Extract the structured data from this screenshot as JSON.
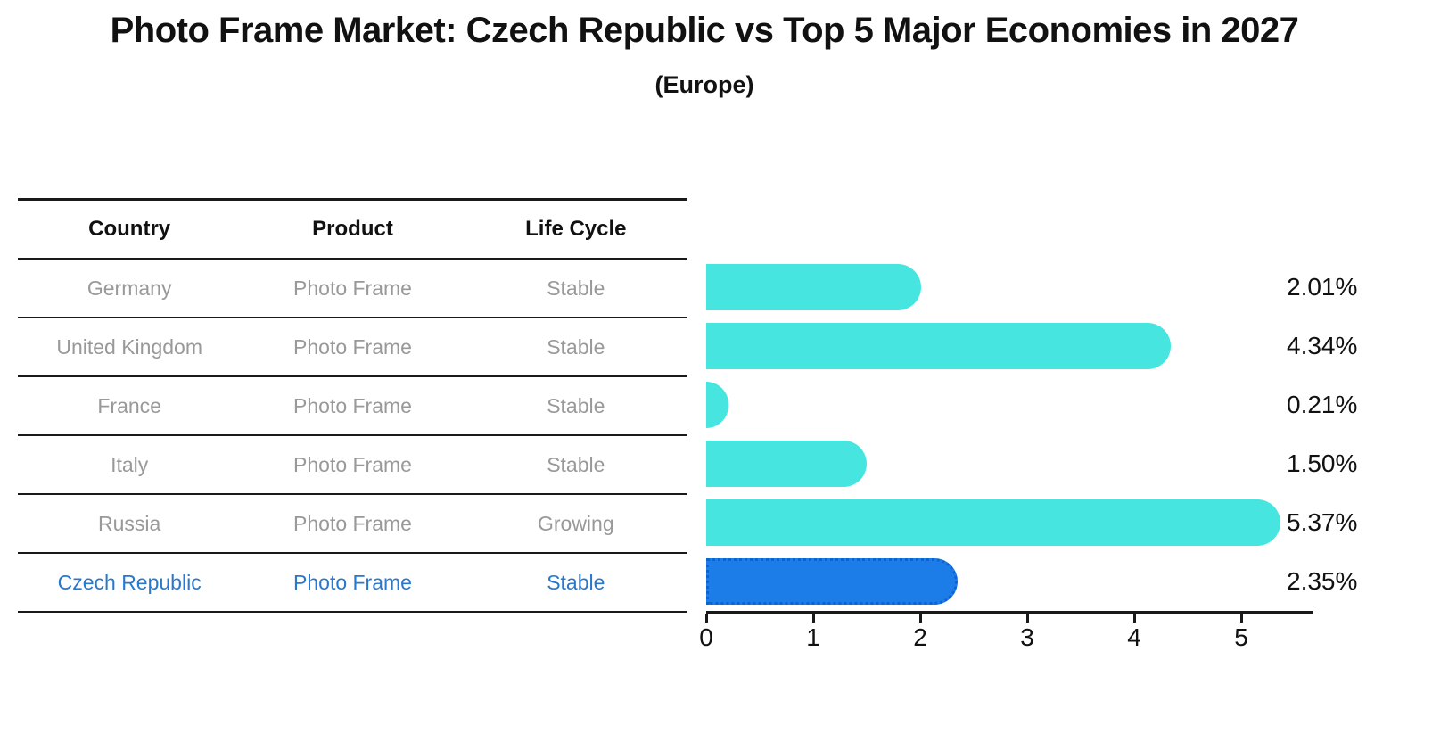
{
  "title": "Photo Frame Market: Czech Republic vs Top 5 Major Economies in 2027",
  "subtitle": "(Europe)",
  "table": {
    "columns": [
      "Country",
      "Product",
      "Life Cycle"
    ]
  },
  "chart_data": {
    "type": "bar",
    "orientation": "horizontal",
    "xlim": [
      0,
      5.675
    ],
    "x_ticks": [
      0,
      1,
      2,
      3,
      4,
      5
    ],
    "grid": false,
    "legend": "none",
    "colors": {
      "bar": "#46E5E0",
      "highlight_bar": "#1C7CE8",
      "highlight_border": "#0F62D6",
      "highlight_text": "#2878CE",
      "row_text": "#999999",
      "axis": "#1a1a1a"
    },
    "rows": [
      {
        "country": "Germany",
        "product": "Photo Frame",
        "life_cycle": "Stable",
        "value": 2.01,
        "label": "2.01%",
        "highlight": false
      },
      {
        "country": "United Kingdom",
        "product": "Photo Frame",
        "life_cycle": "Stable",
        "value": 4.34,
        "label": "4.34%",
        "highlight": false
      },
      {
        "country": "France",
        "product": "Photo Frame",
        "life_cycle": "Stable",
        "value": 0.21,
        "label": "0.21%",
        "highlight": false
      },
      {
        "country": "Italy",
        "product": "Photo Frame",
        "life_cycle": "Stable",
        "value": 1.5,
        "label": "1.50%",
        "highlight": false
      },
      {
        "country": "Russia",
        "product": "Photo Frame",
        "life_cycle": "Growing",
        "value": 5.37,
        "label": "5.37%",
        "highlight": false
      },
      {
        "country": "Czech Republic",
        "product": "Photo Frame",
        "life_cycle": "Stable",
        "value": 2.35,
        "label": "2.35%",
        "highlight": true
      }
    ]
  }
}
